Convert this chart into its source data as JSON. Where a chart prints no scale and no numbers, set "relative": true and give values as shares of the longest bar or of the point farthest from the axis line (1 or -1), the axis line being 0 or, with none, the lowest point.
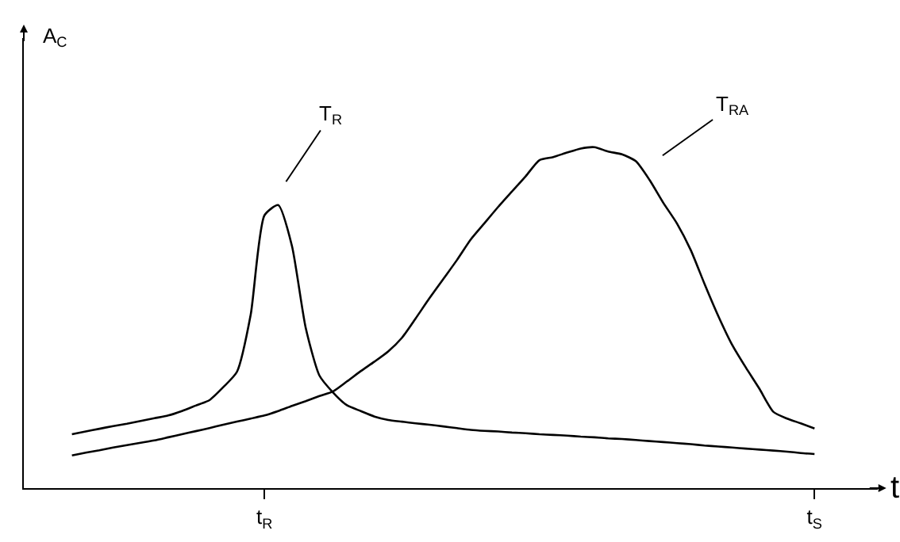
{
  "chart_data": {
    "type": "line",
    "relative": true,
    "xlabel": "t",
    "ylabel": "A$_{C}$",
    "categories": [
      null,
      null,
      null,
      null,
      null,
      null,
      null,
      null,
      null,
      null,
      null,
      null,
      null,
      null,
      "t$_{R}$",
      null,
      null,
      null,
      null,
      null,
      null,
      null,
      null,
      null,
      null,
      null,
      null,
      null,
      null,
      null,
      null,
      null,
      null,
      null,
      null,
      null,
      null,
      null,
      null,
      null,
      null,
      null,
      null,
      null,
      null,
      null,
      null,
      null,
      null,
      null,
      null,
      null,
      null,
      null,
      "t$_{S}$"
    ],
    "series": [
      {
        "color": "#000000",
        "values": [
          0.158,
          0.166,
          0.174,
          0.182,
          0.189,
          0.197,
          0.205,
          0.213,
          0.226,
          0.242,
          0.258,
          0.296,
          0.341,
          0.509,
          0.8,
          0.83,
          0.71,
          0.47,
          0.33,
          0.28,
          0.243,
          0.226,
          0.21,
          0.2,
          0.195,
          0.19,
          0.186,
          0.181,
          0.176,
          0.171,
          0.168,
          0.166,
          0.163,
          0.161,
          0.158,
          0.156,
          0.154,
          0.151,
          0.149,
          0.146,
          0.144,
          0.141,
          0.138,
          0.135,
          0.132,
          0.129,
          0.125,
          0.122,
          0.119,
          0.116,
          0.113,
          0.11,
          0.107,
          0.103,
          0.1
        ]
      },
      {
        "color": "#000000",
        "values": [
          0.096,
          0.104,
          0.111,
          0.119,
          0.126,
          0.133,
          0.14,
          0.149,
          0.158,
          0.167,
          0.176,
          0.186,
          0.195,
          0.204,
          0.213,
          0.226,
          0.241,
          0.255,
          0.27,
          0.284,
          0.313,
          0.343,
          0.371,
          0.401,
          0.441,
          0.498,
          0.557,
          0.613,
          0.669,
          0.729,
          0.777,
          0.825,
          0.87,
          0.915,
          0.962,
          0.971,
          0.984,
          0.996,
          1,
          0.987,
          0.979,
          0.959,
          0.904,
          0.837,
          0.776,
          0.698,
          0.599,
          0.505,
          0.421,
          0.354,
          0.291,
          0.224,
          0.204,
          0.19,
          0.175
        ]
      }
    ],
    "annotations": [
      "T$_{R}$",
      "T$_{RA}$"
    ],
    "grid": false,
    "marker": "none",
    "line_style": "solid"
  }
}
